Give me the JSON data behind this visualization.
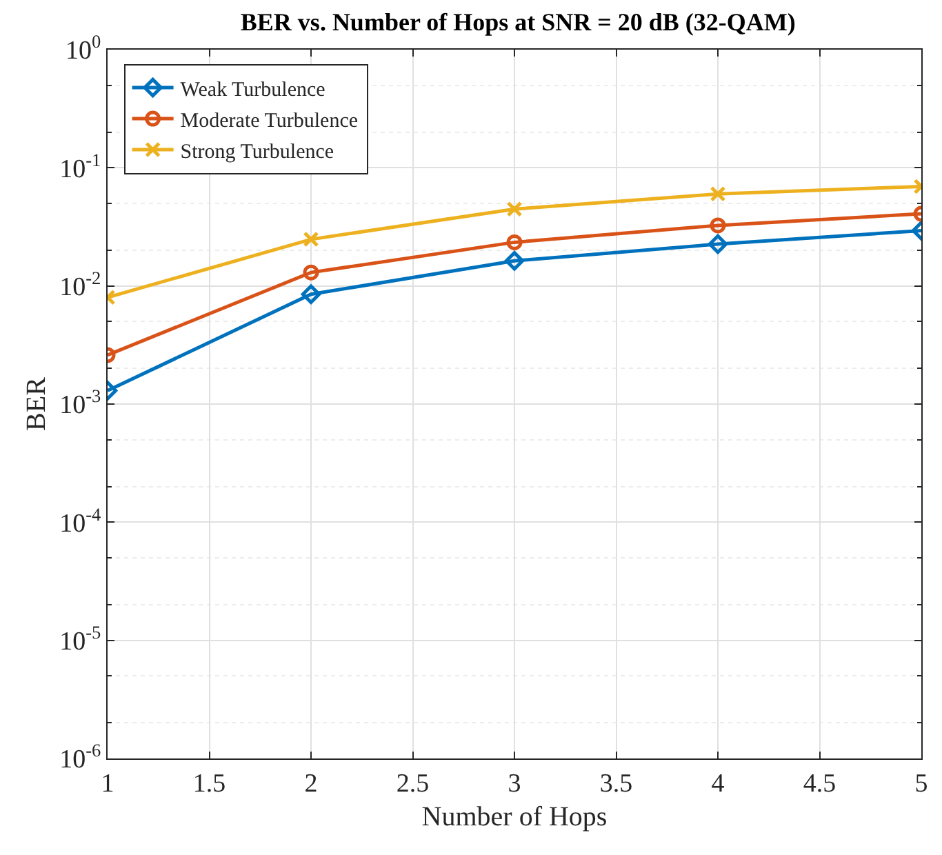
{
  "chart_data": {
    "type": "line",
    "title": "BER vs. Number of Hops at SNR = 20 dB (32-QAM)",
    "xlabel": "Number of Hops",
    "ylabel": "BER",
    "x": [
      1,
      2,
      3,
      4,
      5
    ],
    "series": [
      {
        "name": "Weak Turbulence",
        "color": "#0072bd",
        "marker": "diamond",
        "values": [
          0.0013,
          0.0085,
          0.0163,
          0.0226,
          0.0294
        ]
      },
      {
        "name": "Moderate Turbulence",
        "color": "#d95319",
        "marker": "circle",
        "values": [
          0.0026,
          0.013,
          0.0234,
          0.0325,
          0.0408
        ]
      },
      {
        "name": "Strong Turbulence",
        "color": "#edb120",
        "marker": "cross",
        "values": [
          0.008,
          0.0248,
          0.0447,
          0.06,
          0.0695
        ]
      }
    ],
    "log": "y",
    "grid": true,
    "legend": "top left",
    "xlim": [
      1,
      5
    ],
    "xticks": [
      1,
      1.5,
      2,
      2.5,
      3,
      3.5,
      4,
      4.5,
      5
    ],
    "ylim": [
      1e-06,
      1
    ],
    "yticks": [
      {
        "value": 1e-06,
        "label": "10$^{-6}$"
      },
      {
        "value": 1e-05,
        "label": "10$^{-5}$"
      },
      {
        "value": 0.0001,
        "label": "10$^{-4}$"
      },
      {
        "value": 0.001,
        "label": "10$^{-3}$"
      },
      {
        "value": 0.01,
        "label": "10$^{-2}$"
      },
      {
        "value": 0.1,
        "label": "10$^{-1}$"
      },
      {
        "value": 1,
        "label": "10$^{0}$"
      }
    ]
  }
}
